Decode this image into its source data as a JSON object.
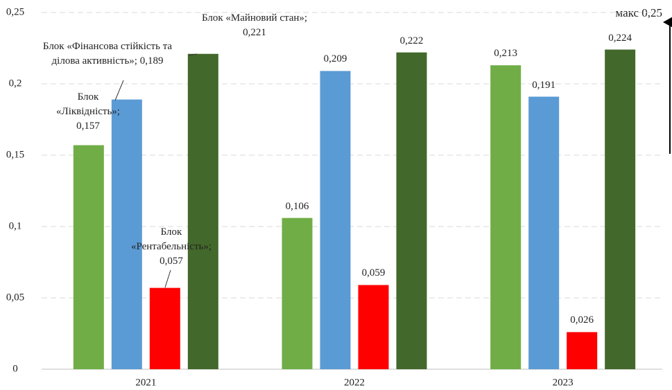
{
  "chart_data": {
    "type": "bar",
    "categories": [
      "2021",
      "2022",
      "2023"
    ],
    "series": [
      {
        "color": "#70ad47",
        "values": [
          0.157,
          0.106,
          0.213
        ],
        "value_labels": [
          "Блок\n«Ліквідність»;\n0,157",
          "0,106",
          "0,213"
        ]
      },
      {
        "color": "#5b9bd5",
        "values": [
          0.189,
          0.209,
          0.191
        ],
        "value_labels": [
          "Блок «Фінансова стійкість та\nділова активність»; 0,189",
          "0,209",
          "0,191"
        ]
      },
      {
        "color": "#ff0000",
        "values": [
          0.057,
          0.059,
          0.026
        ],
        "value_labels": [
          "Блок\n«Рентабельність»;\n0,057",
          "0,059",
          "0,026"
        ]
      },
      {
        "color": "#43682b",
        "values": [
          0.221,
          0.222,
          0.224
        ],
        "value_labels": [
          "Блок «Майновий стан»;\n0,221",
          "0,222",
          "0,224"
        ]
      }
    ],
    "ylim": [
      0,
      0.25
    ],
    "yticks": [
      0,
      {
        "value": 0.05,
        "label": "0,05"
      },
      {
        "value": 0.1,
        "label": "0,1"
      },
      {
        "value": 0.15,
        "label": "0,15"
      },
      {
        "value": 0.2,
        "label": "0,2"
      },
      {
        "value": 0.25,
        "label": "0,25"
      }
    ],
    "grid": true,
    "annotations": [
      {
        "text": "макс 0,25"
      }
    ]
  }
}
